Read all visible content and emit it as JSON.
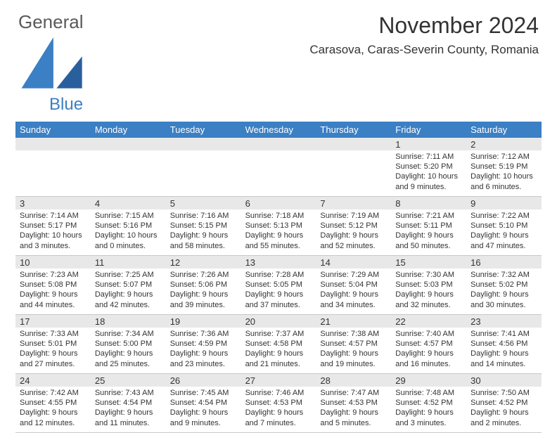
{
  "brand": {
    "name1": "General",
    "name2": "Blue"
  },
  "title": "November 2024",
  "location": "Carasova, Caras-Severin County, Romania",
  "colors": {
    "header_bg": "#3b7fc4",
    "header_text": "#ffffff",
    "strip_bg": "#e8e8e8",
    "text": "#333333",
    "logo_gray": "#5a5a5a",
    "logo_blue": "#3b7fc4"
  },
  "day_headers": [
    "Sunday",
    "Monday",
    "Tuesday",
    "Wednesday",
    "Thursday",
    "Friday",
    "Saturday"
  ],
  "weeks": [
    [
      {
        "n": "",
        "sr": "",
        "ss": "",
        "dl": ""
      },
      {
        "n": "",
        "sr": "",
        "ss": "",
        "dl": ""
      },
      {
        "n": "",
        "sr": "",
        "ss": "",
        "dl": ""
      },
      {
        "n": "",
        "sr": "",
        "ss": "",
        "dl": ""
      },
      {
        "n": "",
        "sr": "",
        "ss": "",
        "dl": ""
      },
      {
        "n": "1",
        "sr": "Sunrise: 7:11 AM",
        "ss": "Sunset: 5:20 PM",
        "dl": "Daylight: 10 hours and 9 minutes."
      },
      {
        "n": "2",
        "sr": "Sunrise: 7:12 AM",
        "ss": "Sunset: 5:19 PM",
        "dl": "Daylight: 10 hours and 6 minutes."
      }
    ],
    [
      {
        "n": "3",
        "sr": "Sunrise: 7:14 AM",
        "ss": "Sunset: 5:17 PM",
        "dl": "Daylight: 10 hours and 3 minutes."
      },
      {
        "n": "4",
        "sr": "Sunrise: 7:15 AM",
        "ss": "Sunset: 5:16 PM",
        "dl": "Daylight: 10 hours and 0 minutes."
      },
      {
        "n": "5",
        "sr": "Sunrise: 7:16 AM",
        "ss": "Sunset: 5:15 PM",
        "dl": "Daylight: 9 hours and 58 minutes."
      },
      {
        "n": "6",
        "sr": "Sunrise: 7:18 AM",
        "ss": "Sunset: 5:13 PM",
        "dl": "Daylight: 9 hours and 55 minutes."
      },
      {
        "n": "7",
        "sr": "Sunrise: 7:19 AM",
        "ss": "Sunset: 5:12 PM",
        "dl": "Daylight: 9 hours and 52 minutes."
      },
      {
        "n": "8",
        "sr": "Sunrise: 7:21 AM",
        "ss": "Sunset: 5:11 PM",
        "dl": "Daylight: 9 hours and 50 minutes."
      },
      {
        "n": "9",
        "sr": "Sunrise: 7:22 AM",
        "ss": "Sunset: 5:10 PM",
        "dl": "Daylight: 9 hours and 47 minutes."
      }
    ],
    [
      {
        "n": "10",
        "sr": "Sunrise: 7:23 AM",
        "ss": "Sunset: 5:08 PM",
        "dl": "Daylight: 9 hours and 44 minutes."
      },
      {
        "n": "11",
        "sr": "Sunrise: 7:25 AM",
        "ss": "Sunset: 5:07 PM",
        "dl": "Daylight: 9 hours and 42 minutes."
      },
      {
        "n": "12",
        "sr": "Sunrise: 7:26 AM",
        "ss": "Sunset: 5:06 PM",
        "dl": "Daylight: 9 hours and 39 minutes."
      },
      {
        "n": "13",
        "sr": "Sunrise: 7:28 AM",
        "ss": "Sunset: 5:05 PM",
        "dl": "Daylight: 9 hours and 37 minutes."
      },
      {
        "n": "14",
        "sr": "Sunrise: 7:29 AM",
        "ss": "Sunset: 5:04 PM",
        "dl": "Daylight: 9 hours and 34 minutes."
      },
      {
        "n": "15",
        "sr": "Sunrise: 7:30 AM",
        "ss": "Sunset: 5:03 PM",
        "dl": "Daylight: 9 hours and 32 minutes."
      },
      {
        "n": "16",
        "sr": "Sunrise: 7:32 AM",
        "ss": "Sunset: 5:02 PM",
        "dl": "Daylight: 9 hours and 30 minutes."
      }
    ],
    [
      {
        "n": "17",
        "sr": "Sunrise: 7:33 AM",
        "ss": "Sunset: 5:01 PM",
        "dl": "Daylight: 9 hours and 27 minutes."
      },
      {
        "n": "18",
        "sr": "Sunrise: 7:34 AM",
        "ss": "Sunset: 5:00 PM",
        "dl": "Daylight: 9 hours and 25 minutes."
      },
      {
        "n": "19",
        "sr": "Sunrise: 7:36 AM",
        "ss": "Sunset: 4:59 PM",
        "dl": "Daylight: 9 hours and 23 minutes."
      },
      {
        "n": "20",
        "sr": "Sunrise: 7:37 AM",
        "ss": "Sunset: 4:58 PM",
        "dl": "Daylight: 9 hours and 21 minutes."
      },
      {
        "n": "21",
        "sr": "Sunrise: 7:38 AM",
        "ss": "Sunset: 4:57 PM",
        "dl": "Daylight: 9 hours and 19 minutes."
      },
      {
        "n": "22",
        "sr": "Sunrise: 7:40 AM",
        "ss": "Sunset: 4:57 PM",
        "dl": "Daylight: 9 hours and 16 minutes."
      },
      {
        "n": "23",
        "sr": "Sunrise: 7:41 AM",
        "ss": "Sunset: 4:56 PM",
        "dl": "Daylight: 9 hours and 14 minutes."
      }
    ],
    [
      {
        "n": "24",
        "sr": "Sunrise: 7:42 AM",
        "ss": "Sunset: 4:55 PM",
        "dl": "Daylight: 9 hours and 12 minutes."
      },
      {
        "n": "25",
        "sr": "Sunrise: 7:43 AM",
        "ss": "Sunset: 4:54 PM",
        "dl": "Daylight: 9 hours and 11 minutes."
      },
      {
        "n": "26",
        "sr": "Sunrise: 7:45 AM",
        "ss": "Sunset: 4:54 PM",
        "dl": "Daylight: 9 hours and 9 minutes."
      },
      {
        "n": "27",
        "sr": "Sunrise: 7:46 AM",
        "ss": "Sunset: 4:53 PM",
        "dl": "Daylight: 9 hours and 7 minutes."
      },
      {
        "n": "28",
        "sr": "Sunrise: 7:47 AM",
        "ss": "Sunset: 4:53 PM",
        "dl": "Daylight: 9 hours and 5 minutes."
      },
      {
        "n": "29",
        "sr": "Sunrise: 7:48 AM",
        "ss": "Sunset: 4:52 PM",
        "dl": "Daylight: 9 hours and 3 minutes."
      },
      {
        "n": "30",
        "sr": "Sunrise: 7:50 AM",
        "ss": "Sunset: 4:52 PM",
        "dl": "Daylight: 9 hours and 2 minutes."
      }
    ]
  ]
}
